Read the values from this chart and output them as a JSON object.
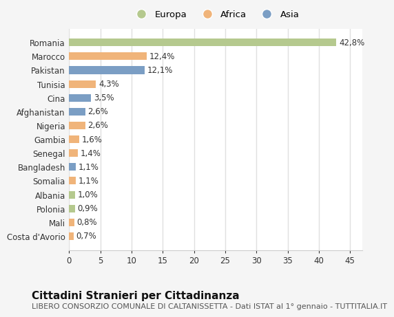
{
  "categories": [
    "Romania",
    "Marocco",
    "Pakistan",
    "Tunisia",
    "Cina",
    "Afghanistan",
    "Nigeria",
    "Gambia",
    "Senegal",
    "Bangladesh",
    "Somalia",
    "Albania",
    "Polonia",
    "Mali",
    "Costa d'Avorio"
  ],
  "values": [
    42.8,
    12.4,
    12.1,
    4.3,
    3.5,
    2.6,
    2.6,
    1.6,
    1.4,
    1.1,
    1.1,
    1.0,
    0.9,
    0.8,
    0.7
  ],
  "labels": [
    "42,8%",
    "12,4%",
    "12,1%",
    "4,3%",
    "3,5%",
    "2,6%",
    "2,6%",
    "1,6%",
    "1,4%",
    "1,1%",
    "1,1%",
    "1,0%",
    "0,9%",
    "0,8%",
    "0,7%"
  ],
  "continents": [
    "Europa",
    "Africa",
    "Asia",
    "Africa",
    "Asia",
    "Asia",
    "Africa",
    "Africa",
    "Africa",
    "Asia",
    "Africa",
    "Europa",
    "Europa",
    "Africa",
    "Africa"
  ],
  "colors": {
    "Europa": "#b5c98e",
    "Africa": "#f0b47a",
    "Asia": "#7b9ec4"
  },
  "xlim": [
    0,
    47
  ],
  "plot_bg": "#ffffff",
  "fig_bg": "#f5f5f5",
  "grid_color": "#e0e0e0",
  "title": "Cittadini Stranieri per Cittadinanza",
  "subtitle": "LIBERO CONSORZIO COMUNALE DI CALTANISSETTA - Dati ISTAT al 1° gennaio - TUTTITALIA.IT",
  "title_fontsize": 11,
  "subtitle_fontsize": 8,
  "tick_fontsize": 8.5,
  "label_fontsize": 8.5,
  "bar_height": 0.55
}
